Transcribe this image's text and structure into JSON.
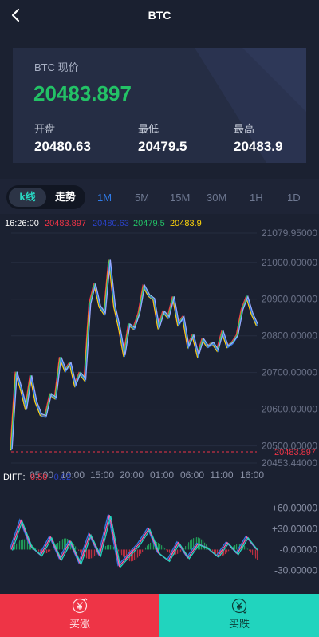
{
  "header": {
    "title": "BTC",
    "back_icon": "chevron-left-icon"
  },
  "quote": {
    "label": "BTC 现价",
    "price": "20483.897",
    "open_label": "开盘",
    "open_value": "20480.63",
    "low_label": "最低",
    "low_value": "20479.5",
    "high_label": "最高",
    "high_value": "20483.9"
  },
  "chart_tabs": {
    "kline_label": "k线",
    "trend_label": "走势",
    "periods": [
      "1M",
      "5M",
      "15M",
      "30M",
      "1H",
      "1D"
    ],
    "active_period": "1M"
  },
  "info_line": {
    "time": "16:26:00",
    "v1": "20483.897",
    "v2": "20480.63",
    "v3": "20479.5",
    "v4": "20483.9"
  },
  "diff_line": {
    "label": "DIFF:",
    "v1": "0.50",
    "v2": "-0.02"
  },
  "colors": {
    "up": "#23c266",
    "down": "#ee3446",
    "accent": "#2f7ae6",
    "teal": "#21d4be",
    "yellow": "#ffd60a",
    "blue": "#2a42c8"
  },
  "chart_data": [
    {
      "type": "line",
      "name": "price",
      "y_ticks": [
        "21079.95000",
        "21000.00000",
        "20900.00000",
        "20800.00000",
        "20700.00000",
        "20600.00000",
        "20500.00000",
        "20453.44000"
      ],
      "x_ticks": [
        "05:00",
        "10:00",
        "15:00",
        "20:00",
        "01:00",
        "06:00",
        "11:00",
        "16:00"
      ],
      "current_price_label": "20483.897",
      "ylim": [
        20453.44,
        21079.95
      ],
      "x": [
        0,
        2,
        4,
        6,
        8,
        10,
        12,
        14,
        16,
        18,
        20,
        22,
        24,
        26,
        28,
        30,
        32,
        34,
        36,
        38,
        40,
        42,
        44,
        46,
        48,
        50,
        52,
        54,
        56,
        58,
        60,
        62,
        64,
        66,
        68,
        70,
        72,
        74,
        76,
        78,
        80,
        82,
        84,
        86,
        88,
        90,
        92,
        94,
        96,
        98,
        100
      ],
      "values": [
        20490,
        20700,
        20655,
        20600,
        20690,
        20620,
        20585,
        20580,
        20640,
        20630,
        20740,
        20705,
        20725,
        20665,
        20698,
        20680,
        20885,
        20940,
        20880,
        20860,
        21005,
        20880,
        20820,
        20745,
        20830,
        20820,
        20860,
        20935,
        20910,
        20900,
        20820,
        20865,
        20850,
        20905,
        20830,
        20850,
        20770,
        20800,
        20745,
        20790,
        20770,
        20780,
        20760,
        20810,
        20770,
        20780,
        20800,
        20870,
        20905,
        20860,
        20830
      ]
    },
    {
      "type": "line",
      "name": "DIFF",
      "y_ticks": [
        "+60.00000",
        "+30.00000",
        "-0.00000",
        "-30.00000"
      ],
      "ylim": [
        -40,
        70
      ],
      "x": [
        0,
        4,
        8,
        12,
        16,
        20,
        24,
        28,
        32,
        36,
        40,
        44,
        48,
        52,
        56,
        60,
        64,
        68,
        72,
        76,
        80,
        84,
        88,
        92,
        96,
        100
      ],
      "values": [
        0,
        42,
        5,
        -8,
        18,
        -14,
        12,
        -20,
        22,
        -8,
        50,
        -24,
        -8,
        8,
        30,
        -5,
        -16,
        10,
        -12,
        8,
        2,
        -10,
        10,
        -6,
        18,
        0
      ]
    }
  ]
}
